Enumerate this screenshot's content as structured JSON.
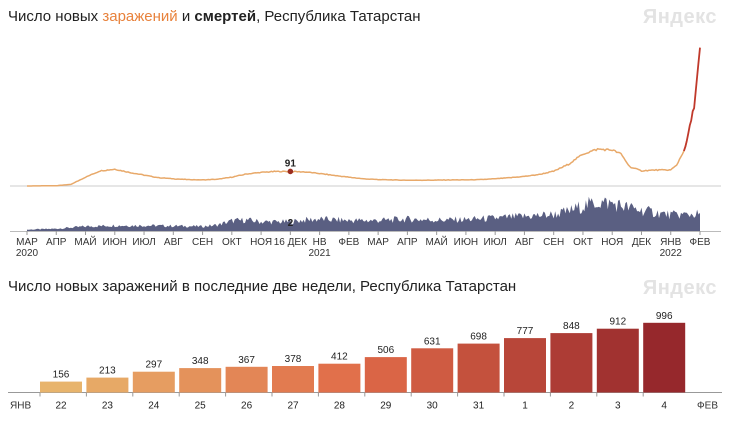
{
  "chart_data": [
    {
      "type": "line",
      "title_parts": [
        "Число новых ",
        "заражений",
        " и ",
        "смертей",
        ", Республика Татарстан"
      ],
      "brand": "Яндекс",
      "x_ticks": [
        {
          "label": "МАР",
          "sub": "2020"
        },
        {
          "label": "АПР",
          "sub": ""
        },
        {
          "label": "МАЙ",
          "sub": ""
        },
        {
          "label": "ИЮН",
          "sub": ""
        },
        {
          "label": "ИЮЛ",
          "sub": ""
        },
        {
          "label": "АВГ",
          "sub": ""
        },
        {
          "label": "СЕН",
          "sub": ""
        },
        {
          "label": "ОКТ",
          "sub": ""
        },
        {
          "label": "НОЯ",
          "sub": ""
        },
        {
          "label": "16 ДЕК",
          "sub": ""
        },
        {
          "label": "НВ",
          "sub": "2021"
        },
        {
          "label": "ФЕВ",
          "sub": ""
        },
        {
          "label": "МАР",
          "sub": ""
        },
        {
          "label": "АПР",
          "sub": ""
        },
        {
          "label": "МАЙ",
          "sub": ""
        },
        {
          "label": "ИЮН",
          "sub": ""
        },
        {
          "label": "ИЮЛ",
          "sub": ""
        },
        {
          "label": "АВГ",
          "sub": ""
        },
        {
          "label": "СЕН",
          "sub": ""
        },
        {
          "label": "ОКТ",
          "sub": ""
        },
        {
          "label": "НОЯ",
          "sub": ""
        },
        {
          "label": "ДЕК",
          "sub": ""
        },
        {
          "label": "ЯНВ",
          "sub": "2022"
        },
        {
          "label": "ФЕВ",
          "sub": ""
        }
      ],
      "cases_anchors": [
        [
          0,
          0
        ],
        [
          1,
          2
        ],
        [
          1.5,
          10
        ],
        [
          2,
          55
        ],
        [
          2.5,
          95
        ],
        [
          3,
          105
        ],
        [
          3.5,
          85
        ],
        [
          4,
          68
        ],
        [
          4.5,
          52
        ],
        [
          5,
          45
        ],
        [
          5.5,
          40
        ],
        [
          6,
          38
        ],
        [
          6.5,
          42
        ],
        [
          7,
          55
        ],
        [
          7.5,
          75
        ],
        [
          8,
          85
        ],
        [
          8.5,
          91
        ],
        [
          9,
          91
        ],
        [
          9.5,
          88
        ],
        [
          10,
          78
        ],
        [
          10.5,
          66
        ],
        [
          11,
          55
        ],
        [
          11.5,
          45
        ],
        [
          12,
          40
        ],
        [
          12.5,
          38
        ],
        [
          13,
          36
        ],
        [
          13.5,
          36
        ],
        [
          14,
          37
        ],
        [
          14.5,
          38
        ],
        [
          15,
          38
        ],
        [
          15.5,
          40
        ],
        [
          16,
          45
        ],
        [
          16.5,
          52
        ],
        [
          17,
          60
        ],
        [
          17.5,
          72
        ],
        [
          18,
          92
        ],
        [
          18.5,
          135
        ],
        [
          19,
          200
        ],
        [
          19.5,
          230
        ],
        [
          20,
          225
        ],
        [
          20.3,
          200
        ],
        [
          20.6,
          120
        ],
        [
          21,
          95
        ],
        [
          21.5,
          100
        ],
        [
          22,
          100
        ],
        [
          22.2,
          130
        ],
        [
          22.5,
          240
        ],
        [
          22.8,
          500
        ],
        [
          23,
          850
        ]
      ],
      "deaths_anchors": [
        [
          0,
          0.3
        ],
        [
          1,
          0.5
        ],
        [
          2,
          1
        ],
        [
          3,
          1.2
        ],
        [
          4,
          1.2
        ],
        [
          5,
          1.1
        ],
        [
          6,
          1
        ],
        [
          6.5,
          1.3
        ],
        [
          7,
          2.2
        ],
        [
          7.5,
          2.4
        ],
        [
          8,
          2
        ],
        [
          8.5,
          2
        ],
        [
          9,
          2
        ],
        [
          9.5,
          2.4
        ],
        [
          10,
          2.6
        ],
        [
          11,
          2.3
        ],
        [
          12,
          2.3
        ],
        [
          13,
          2.6
        ],
        [
          14,
          2.4
        ],
        [
          15,
          2.5
        ],
        [
          16,
          2.8
        ],
        [
          17,
          3.2
        ],
        [
          18,
          3.6
        ],
        [
          18.5,
          4.3
        ],
        [
          19,
          5.5
        ],
        [
          19.5,
          6.3
        ],
        [
          20,
          6
        ],
        [
          20.5,
          5.2
        ],
        [
          21,
          4.5
        ],
        [
          22,
          3.5
        ],
        [
          23,
          3.7
        ]
      ],
      "cases_ylim": [
        0,
        850
      ],
      "deaths_ylim": [
        0,
        7
      ],
      "highlight": {
        "x": 9,
        "cases": 91,
        "deaths": 2
      },
      "colors": {
        "cases": "#e8a96a",
        "cases_recent": "#c0392b",
        "deaths": "#5a5f82",
        "highlight": "#9b2d20"
      }
    },
    {
      "type": "bar",
      "title": "Число новых заражений в последние две недели, Республика Татарстан",
      "brand": "Яндекс",
      "axis_start": "ЯНВ",
      "axis_end": "ФЕВ",
      "categories": [
        "22",
        "23",
        "24",
        "25",
        "26",
        "27",
        "28",
        "29",
        "30",
        "31",
        "1",
        "2",
        "3",
        "4"
      ],
      "weekend": [
        true,
        true,
        false,
        false,
        false,
        false,
        false,
        true,
        true,
        false,
        false,
        false,
        false,
        false
      ],
      "values": [
        156,
        213,
        297,
        348,
        367,
        378,
        412,
        506,
        631,
        698,
        777,
        848,
        912,
        996
      ],
      "ylim": [
        0,
        1000
      ],
      "colors": {
        "low": "#e8b46c",
        "mid": "#e06a48",
        "high": "#96282c",
        "weekend": "#e0463a",
        "axis": "#999999"
      }
    }
  ]
}
